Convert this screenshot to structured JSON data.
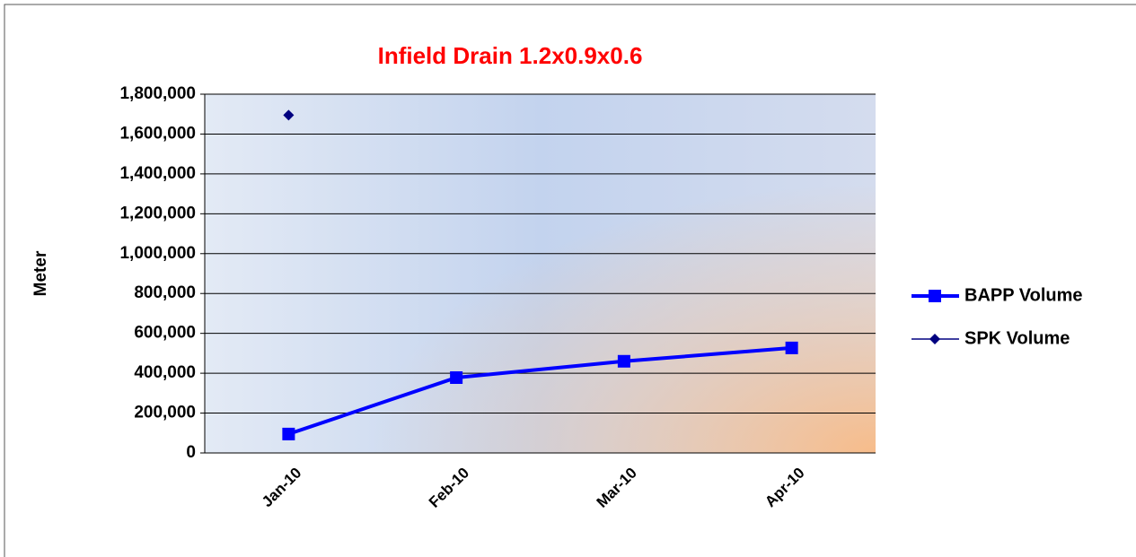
{
  "chart_data": {
    "type": "line",
    "title": "Infield Drain 1.2x0.9x0.6",
    "y_label": "Meter",
    "categories": [
      "Jan-10",
      "Feb-10",
      "Mar-10",
      "Apr-10"
    ],
    "series": [
      {
        "name": "BAPP Volume",
        "color": "#0000ff",
        "marker": "square",
        "line_width": 4,
        "values": [
          95000,
          378000,
          460000,
          527000
        ]
      },
      {
        "name": "SPK Volume",
        "color": "#000080",
        "marker": "diamond",
        "line_width": 1.5,
        "values": [
          1695000,
          null,
          null,
          null
        ]
      }
    ],
    "ylim": [
      0,
      1800000
    ],
    "yticks": [
      0,
      {
        "value": 200000,
        "label": "200,000"
      },
      {
        "value": 400000,
        "label": "400,000"
      },
      {
        "value": 600000,
        "label": "600,000"
      },
      {
        "value": 800000,
        "label": "800,000"
      },
      {
        "value": 1000000,
        "label": "1,000,000"
      },
      {
        "value": 1200000,
        "label": "1,200,000"
      },
      {
        "value": 1400000,
        "label": "1,400,000"
      },
      {
        "value": 1600000,
        "label": "1,600,000"
      },
      {
        "value": 1800000,
        "label": "1,800,000"
      }
    ],
    "grid": true,
    "legend": "right"
  }
}
